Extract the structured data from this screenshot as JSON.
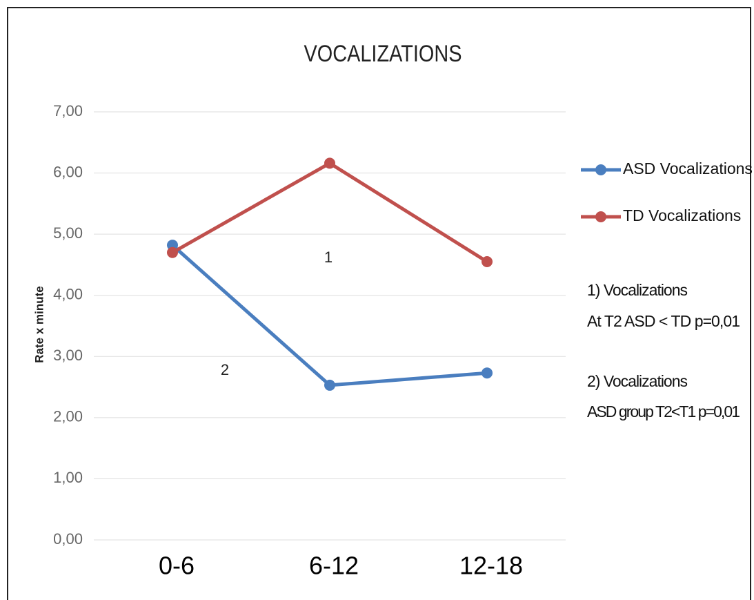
{
  "chart_data": {
    "type": "line",
    "title": "VOCALIZATIONS",
    "y_label": "Rate x minute",
    "categories": [
      "0-6",
      "6-12",
      "12-18"
    ],
    "series": [
      {
        "name": "ASD Vocalizations",
        "color": "#4a7ebf",
        "values": [
          4.82,
          2.53,
          2.73
        ]
      },
      {
        "name": "TD Vocalizations",
        "color": "#c0504d",
        "values": [
          4.7,
          6.16,
          4.55
        ]
      }
    ],
    "ylim": [
      0,
      7
    ],
    "yticks": [
      {
        "value": 0,
        "label": "0,00"
      },
      {
        "value": 1,
        "label": "1,00"
      },
      {
        "value": 2,
        "label": "2,00"
      },
      {
        "value": 3,
        "label": "3,00"
      },
      {
        "value": 4,
        "label": "4,00"
      },
      {
        "value": 5,
        "label": "5,00"
      },
      {
        "value": 6,
        "label": "6,00"
      },
      {
        "value": 7,
        "label": "7,00"
      }
    ],
    "grid": true,
    "legend": "right",
    "annotations": [
      "1",
      "2"
    ],
    "notes": [
      "1) Vocalizations",
      "At T2 ASD < TD p=0,01",
      "2) Vocalizations",
      "ASD group T2<T1 p=0,01"
    ]
  }
}
